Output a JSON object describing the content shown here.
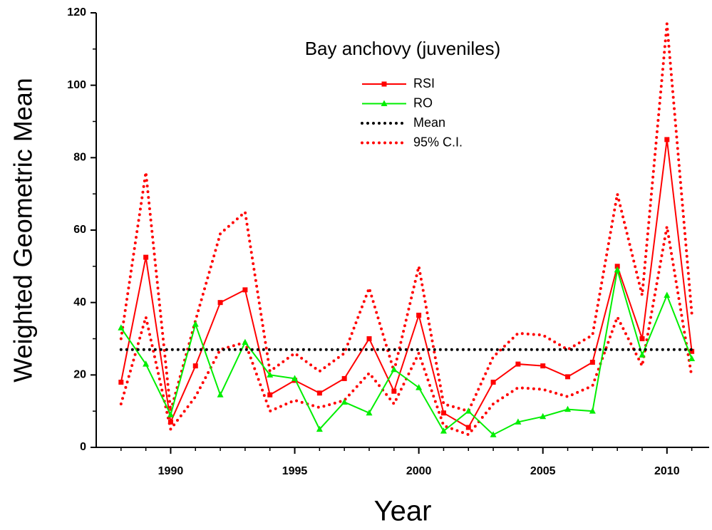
{
  "chart_data": {
    "type": "line",
    "title": "Bay anchovy (juveniles)",
    "xlabel": "Year",
    "ylabel": "Weighted Geometric Mean",
    "x": [
      1988,
      1989,
      1990,
      1991,
      1992,
      1993,
      1994,
      1995,
      1996,
      1997,
      1998,
      1999,
      2000,
      2001,
      2002,
      2003,
      2004,
      2005,
      2006,
      2007,
      2008,
      2009,
      2010,
      2011
    ],
    "series": [
      {
        "name": "RSI",
        "color": "#ff0000",
        "marker": "square",
        "style": "solid",
        "values": [
          18,
          52.5,
          7,
          22.5,
          40,
          43.5,
          14.5,
          18.5,
          15,
          19,
          30,
          15.5,
          36.5,
          9.5,
          5.5,
          18,
          23,
          22.5,
          19.5,
          23.5,
          50,
          30,
          85,
          26.5
        ]
      },
      {
        "name": "RO",
        "color": "#00ee00",
        "marker": "triangle",
        "style": "solid",
        "values": [
          33,
          23,
          9,
          34,
          14.5,
          29,
          20,
          19,
          5,
          12.5,
          9.5,
          21.5,
          16.5,
          4.5,
          10,
          3.5,
          7,
          8.5,
          10.5,
          10,
          49,
          25.5,
          42,
          24.5
        ]
      },
      {
        "name": "Mean",
        "color": "#000000",
        "marker": "none",
        "style": "dotted",
        "values": [
          27,
          27,
          27,
          27,
          27,
          27,
          27,
          27,
          27,
          27,
          27,
          27,
          27,
          27,
          27,
          27,
          27,
          27,
          27,
          27,
          27,
          27,
          27,
          27
        ]
      }
    ],
    "ci": {
      "name": "95% C.I.",
      "color": "#ff0000",
      "style": "dotted",
      "upper": [
        30,
        76,
        10,
        35,
        59,
        65,
        21,
        26,
        21,
        26,
        44,
        21,
        50,
        12,
        10,
        25,
        31.5,
        31,
        27,
        31,
        70,
        42,
        117,
        37
      ],
      "lower": [
        12,
        36,
        5,
        14,
        27,
        29,
        10,
        13,
        11,
        13,
        20.5,
        12,
        26,
        6,
        3.5,
        12,
        16.5,
        16,
        14,
        17,
        36,
        22.5,
        61,
        19.5
      ]
    },
    "xlim": [
      1987,
      2011.7
    ],
    "ylim": [
      0,
      120
    ],
    "xticks": [
      1990,
      1995,
      2000,
      2005,
      2010
    ],
    "yticks": [
      0,
      20,
      40,
      60,
      80,
      100,
      120
    ],
    "xminorticks": [
      1988,
      1989,
      1991,
      1992,
      1993,
      1994,
      1996,
      1997,
      1998,
      1999,
      2001,
      2002,
      2003,
      2004,
      2006,
      2007,
      2008,
      2009,
      2011
    ],
    "yminorticks": [
      10,
      30,
      50,
      70,
      90,
      110
    ],
    "grid": false
  }
}
